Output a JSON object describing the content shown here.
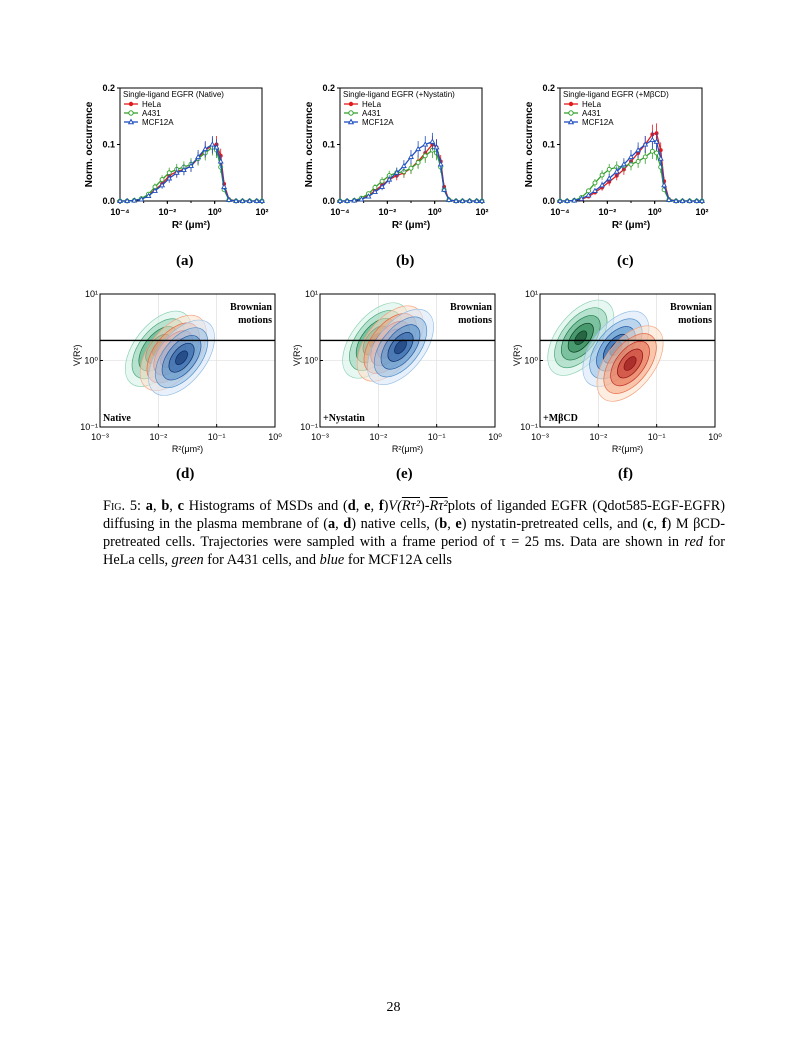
{
  "figure": {
    "histograms": [
      {
        "label": "(a)",
        "legend_title": "Single-ligand EGFR (Native)"
      },
      {
        "label": "(b)",
        "legend_title": "Single-ligand EGFR (+Nystatin)"
      },
      {
        "label": "(c)",
        "legend_title": "Single-ligand EGFR (+MβCD)"
      }
    ],
    "contours": [
      {
        "label": "(d)",
        "condition": "Native"
      },
      {
        "label": "(e)",
        "condition": "+Nystatin"
      },
      {
        "label": "(f)",
        "condition": "+MβCD"
      }
    ],
    "hist_ylabel": "Norm. occurrence",
    "hist_xlabel": "R² (μm²)",
    "contour_ylabel": "V(R²)",
    "contour_xlabel": "R²(μm²)",
    "brownian_label_line1": "Brownian",
    "brownian_label_line2": "motions",
    "legend": [
      {
        "name": "HeLa",
        "color": "#e31a1c"
      },
      {
        "name": "A431",
        "color": "#33a02c"
      },
      {
        "name": "MCF12A",
        "color": "#1f4fbf"
      }
    ]
  },
  "chart_data": [
    {
      "type": "line",
      "panel": "a",
      "x": [
        0.0001,
        0.0002,
        0.0004,
        0.0008,
        0.0016,
        0.003,
        0.006,
        0.012,
        0.025,
        0.05,
        0.1,
        0.2,
        0.4,
        0.8,
        1.2,
        1.8,
        2.5,
        4,
        8,
        15,
        30,
        60,
        100
      ],
      "series": [
        {
          "name": "HeLa",
          "values": [
            0,
            0,
            0.001,
            0.003,
            0.01,
            0.02,
            0.03,
            0.045,
            0.052,
            0.056,
            0.062,
            0.075,
            0.09,
            0.098,
            0.1,
            0.08,
            0.03,
            0.003,
            0,
            0,
            0,
            0,
            0
          ]
        },
        {
          "name": "A431",
          "values": [
            0,
            0,
            0.001,
            0.004,
            0.012,
            0.025,
            0.038,
            0.05,
            0.056,
            0.06,
            0.065,
            0.075,
            0.085,
            0.095,
            0.09,
            0.06,
            0.02,
            0.002,
            0,
            0,
            0,
            0,
            0
          ]
        },
        {
          "name": "MCF12A",
          "values": [
            0,
            0,
            0.001,
            0.003,
            0.009,
            0.018,
            0.028,
            0.04,
            0.05,
            0.055,
            0.062,
            0.078,
            0.092,
            0.1,
            0.095,
            0.07,
            0.025,
            0.002,
            0,
            0,
            0,
            0,
            0
          ]
        }
      ],
      "ylabel": "Norm. occurrence",
      "ylim": [
        0,
        0.2
      ],
      "yticks": [
        "0.0",
        "0.1",
        "0.2"
      ],
      "xscale": "log",
      "xlim": [
        0.0001,
        100
      ],
      "xticks": [
        "10⁻⁴",
        "10⁻²",
        "10⁰",
        "10²"
      ],
      "legend_position": "top-left"
    },
    {
      "type": "line",
      "panel": "b",
      "x": [
        0.0001,
        0.0002,
        0.0004,
        0.0008,
        0.0016,
        0.003,
        0.006,
        0.012,
        0.025,
        0.05,
        0.1,
        0.2,
        0.4,
        0.8,
        1.2,
        1.8,
        2.5,
        4,
        8,
        15,
        30,
        60,
        100
      ],
      "series": [
        {
          "name": "HeLa",
          "values": [
            0,
            0,
            0.001,
            0.004,
            0.01,
            0.018,
            0.028,
            0.038,
            0.045,
            0.05,
            0.058,
            0.07,
            0.085,
            0.1,
            0.095,
            0.07,
            0.025,
            0.002,
            0,
            0,
            0,
            0,
            0
          ]
        },
        {
          "name": "A431",
          "values": [
            0,
            0,
            0.001,
            0.005,
            0.013,
            0.024,
            0.035,
            0.045,
            0.05,
            0.052,
            0.058,
            0.068,
            0.08,
            0.09,
            0.085,
            0.06,
            0.02,
            0.002,
            0,
            0,
            0,
            0,
            0
          ]
        },
        {
          "name": "MCF12A",
          "values": [
            0,
            0,
            0.001,
            0.003,
            0.008,
            0.016,
            0.025,
            0.038,
            0.05,
            0.062,
            0.078,
            0.092,
            0.1,
            0.105,
            0.095,
            0.065,
            0.02,
            0.002,
            0,
            0,
            0,
            0,
            0
          ]
        }
      ],
      "ylabel": "Norm. occurrence",
      "ylim": [
        0,
        0.2
      ],
      "yticks": [
        "0.0",
        "0.1",
        "0.2"
      ],
      "xscale": "log",
      "xlim": [
        0.0001,
        100
      ],
      "xticks": [
        "10⁻⁴",
        "10⁻²",
        "10⁰",
        "10²"
      ],
      "legend_position": "top-left"
    },
    {
      "type": "line",
      "panel": "c",
      "x": [
        0.0001,
        0.0002,
        0.0004,
        0.0008,
        0.0016,
        0.003,
        0.006,
        0.012,
        0.025,
        0.05,
        0.1,
        0.2,
        0.4,
        0.8,
        1.2,
        1.8,
        2.5,
        4,
        8,
        15,
        30,
        60,
        100
      ],
      "series": [
        {
          "name": "HeLa",
          "values": [
            0,
            0,
            0.001,
            0.003,
            0.008,
            0.015,
            0.024,
            0.034,
            0.045,
            0.056,
            0.07,
            0.085,
            0.1,
            0.118,
            0.12,
            0.09,
            0.035,
            0.003,
            0,
            0,
            0,
            0,
            0
          ]
        },
        {
          "name": "A431",
          "values": [
            0,
            0,
            0.001,
            0.006,
            0.018,
            0.032,
            0.046,
            0.056,
            0.06,
            0.062,
            0.065,
            0.07,
            0.078,
            0.088,
            0.085,
            0.06,
            0.02,
            0.002,
            0,
            0,
            0,
            0,
            0
          ]
        },
        {
          "name": "MCF12A",
          "values": [
            0,
            0,
            0.001,
            0.004,
            0.01,
            0.018,
            0.028,
            0.04,
            0.052,
            0.065,
            0.078,
            0.09,
            0.1,
            0.108,
            0.105,
            0.075,
            0.028,
            0.002,
            0,
            0,
            0,
            0,
            0
          ]
        }
      ],
      "ylabel": "Norm. occurrence",
      "ylim": [
        0,
        0.2
      ],
      "yticks": [
        "0.0",
        "0.1",
        "0.2"
      ],
      "xscale": "log",
      "xlim": [
        0.0001,
        100
      ],
      "xticks": [
        "10⁻⁴",
        "10⁻²",
        "10⁰",
        "10²"
      ],
      "legend_position": "top-left"
    },
    {
      "type": "heatmap",
      "panel": "d",
      "xscale": "log",
      "yscale": "log",
      "xlim": [
        0.001,
        1
      ],
      "ylim": [
        0.1,
        10
      ],
      "xticks": [
        "10⁻³",
        "10⁻²",
        "10⁻¹",
        "10⁰"
      ],
      "yticks": [
        "10⁻¹",
        "10⁰",
        "10¹"
      ],
      "brownian_line_y": 2,
      "series": [
        {
          "name": "A431",
          "center": [
            0.01,
            1.5
          ]
        },
        {
          "name": "HeLa",
          "center": [
            0.018,
            1.3
          ]
        },
        {
          "name": "MCF12A",
          "center": [
            0.025,
            1.1
          ]
        }
      ]
    },
    {
      "type": "heatmap",
      "panel": "e",
      "xscale": "log",
      "yscale": "log",
      "xlim": [
        0.001,
        1
      ],
      "ylim": [
        0.1,
        10
      ],
      "xticks": [
        "10⁻³",
        "10⁻²",
        "10⁻¹",
        "10⁰"
      ],
      "yticks": [
        "10⁻¹",
        "10⁰",
        "10¹"
      ],
      "brownian_line_y": 2,
      "series": [
        {
          "name": "A431",
          "center": [
            0.009,
            2.0
          ]
        },
        {
          "name": "HeLa",
          "center": [
            0.016,
            1.8
          ]
        },
        {
          "name": "MCF12A",
          "center": [
            0.024,
            1.6
          ]
        }
      ]
    },
    {
      "type": "heatmap",
      "panel": "f",
      "xscale": "log",
      "yscale": "log",
      "xlim": [
        0.001,
        1
      ],
      "ylim": [
        0.1,
        10
      ],
      "xticks": [
        "10⁻³",
        "10⁻²",
        "10⁻¹",
        "10⁰"
      ],
      "yticks": [
        "10⁻¹",
        "10⁰",
        "10¹"
      ],
      "brownian_line_y": 2,
      "series": [
        {
          "name": "A431",
          "center": [
            0.005,
            2.2
          ]
        },
        {
          "name": "MCF12A",
          "center": [
            0.02,
            1.5
          ]
        },
        {
          "name": "HeLa",
          "center": [
            0.035,
            0.9
          ]
        }
      ]
    }
  ],
  "caption": {
    "fig_label": "Fig. 5:",
    "p_a": "a",
    "comma1": ", ",
    "p_b": "b",
    "comma2": ", ",
    "p_c": "c",
    "t1": " Histograms of MSDs and (",
    "p_d": "d",
    "comma3": ", ",
    "p_e": "e",
    "comma4": ", ",
    "p_f": "f",
    "t2": ")",
    "t3": "V(",
    "r_tau_1": "Rτ²",
    "t4": ")-",
    "r_tau_2": "Rτ²",
    "t5": "plots of liganded EGFR (Qdot585-EGF-EGFR) diffusing in the plasma membrane of (",
    "p_a2": "a",
    "comma5": ", ",
    "p_d2": "d",
    "t6": ") native cells, (",
    "p_b2": "b",
    "comma6": ", ",
    "p_e2": "e",
    "t7": ") nystatin-pretreated cells, and (",
    "p_c2": "c",
    "comma7": ", ",
    "p_f2": "f",
    "t8": ") M βCD-pretreated cells. Trajectories were sampled with a frame period of τ = 25 ms. Data are shown in ",
    "red": "red",
    "t9": " for HeLa cells, ",
    "green": "green",
    "t10": " for A431 cells, and ",
    "blue": "blue",
    "t11": " for MCF12A cells"
  },
  "page_number": "28"
}
